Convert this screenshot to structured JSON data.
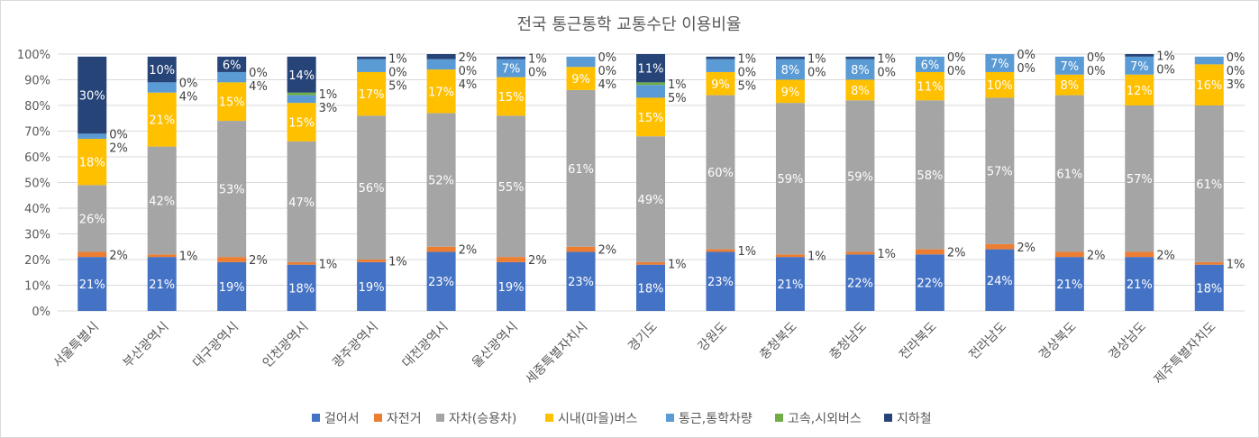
{
  "chart_data": {
    "type": "bar",
    "stacked": "percent",
    "title": "전국 통근통학 교통수단 이용비율",
    "xlabel": "",
    "ylabel": "",
    "ylim": [
      0,
      100
    ],
    "yticks": [
      "0%",
      "10%",
      "20%",
      "30%",
      "40%",
      "50%",
      "60%",
      "70%",
      "80%",
      "90%",
      "100%"
    ],
    "grid": true,
    "legend_position": "bottom",
    "categories": [
      "서울특별시",
      "부산광역시",
      "대구광역시",
      "인천광역시",
      "광주광역시",
      "대전광역시",
      "울산광역시",
      "세종특별자치시",
      "경기도",
      "강원도",
      "충청북도",
      "충청남도",
      "전라북도",
      "전라남도",
      "경상북도",
      "경상남도",
      "제주특별자치도"
    ],
    "series": [
      {
        "name": "걸어서",
        "color": "#4472C4",
        "values": [
          21,
          21,
          19,
          18,
          19,
          23,
          19,
          23,
          18,
          23,
          21,
          22,
          22,
          24,
          21,
          21,
          18
        ]
      },
      {
        "name": "자전거",
        "color": "#ED7D31",
        "values": [
          2,
          1,
          2,
          1,
          1,
          2,
          2,
          2,
          1,
          1,
          1,
          1,
          2,
          2,
          2,
          2,
          1
        ]
      },
      {
        "name": "자차(승용차)",
        "color": "#A5A5A5",
        "values": [
          26,
          42,
          53,
          47,
          56,
          52,
          55,
          61,
          49,
          60,
          59,
          59,
          58,
          57,
          61,
          57,
          61
        ]
      },
      {
        "name": "시내(마을)버스",
        "color": "#FFC000",
        "values": [
          18,
          21,
          15,
          15,
          17,
          17,
          15,
          9,
          15,
          9,
          9,
          8,
          11,
          10,
          8,
          12,
          16
        ]
      },
      {
        "name": "통근,통학차량",
        "color": "#5B9BD5",
        "values": [
          2,
          4,
          4,
          3,
          5,
          4,
          7,
          4,
          5,
          5,
          8,
          8,
          6,
          7,
          7,
          7,
          3
        ]
      },
      {
        "name": "고속,시외버스",
        "color": "#70AD47",
        "values": [
          0,
          0,
          0,
          1,
          0,
          0,
          0,
          0,
          1,
          0,
          0,
          0,
          0,
          0,
          0,
          0,
          0
        ]
      },
      {
        "name": "지하철",
        "color": "#264478",
        "values": [
          30,
          10,
          6,
          14,
          1,
          2,
          1,
          0,
          11,
          1,
          1,
          1,
          0,
          0,
          0,
          1,
          0
        ]
      }
    ]
  }
}
